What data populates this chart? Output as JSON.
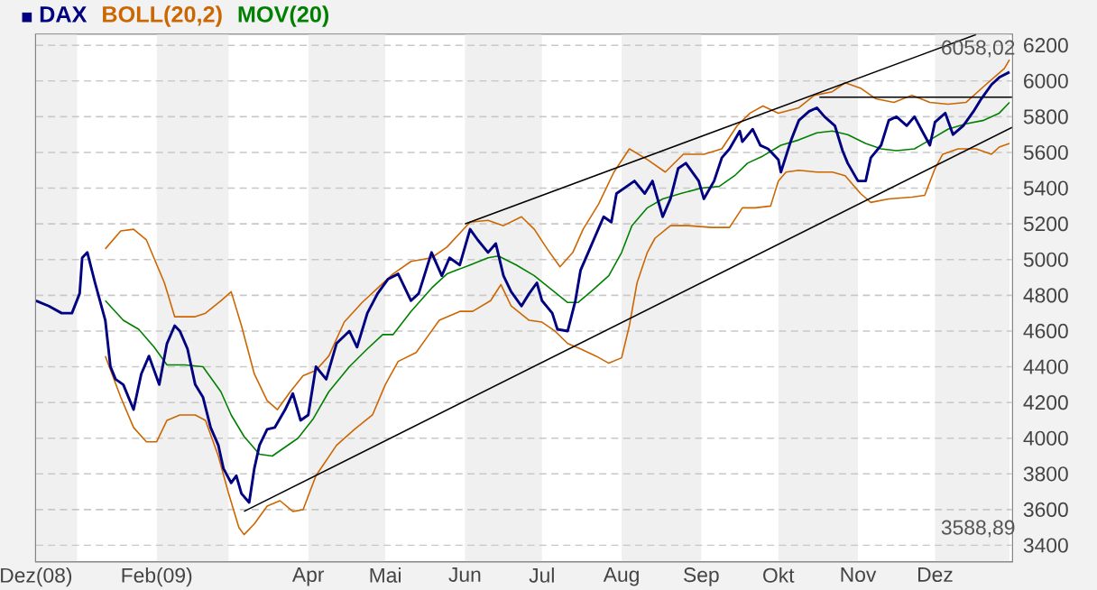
{
  "chart_data": {
    "type": "line",
    "legend": "top left",
    "grid": "y",
    "xlim": [
      "2008-12-16",
      "2009-12-31"
    ],
    "xticks": [
      {
        "value": "2008-12-16",
        "label": "Dez(08)"
      },
      {
        "value": "2009-02-01",
        "label": "Feb(09)"
      },
      {
        "value": "2009-04-01",
        "label": "Apr"
      },
      {
        "value": "2009-05-01",
        "label": "Mai"
      },
      {
        "value": "2009-06-01",
        "label": "Jun"
      },
      {
        "value": "2009-07-01",
        "label": "Jul"
      },
      {
        "value": "2009-08-01",
        "label": "Aug"
      },
      {
        "value": "2009-09-01",
        "label": "Sep"
      },
      {
        "value": "2009-10-01",
        "label": "Okt"
      },
      {
        "value": "2009-11-01",
        "label": "Nov"
      },
      {
        "value": "2009-12-01",
        "label": "Dez"
      }
    ],
    "ylim": [
      3310,
      6260
    ],
    "yticks": [
      3400,
      3600,
      3800,
      4000,
      4200,
      4400,
      4600,
      4800,
      5000,
      5200,
      5400,
      5600,
      5800,
      6000,
      6200
    ],
    "bands": [
      {
        "axis": "x",
        "from": "2008-12-16",
        "to": "2009-01-01",
        "color": "#f0f0f0"
      },
      {
        "axis": "x",
        "from": "2009-02-01",
        "to": "2009-03-01",
        "color": "#f0f0f0"
      },
      {
        "axis": "x",
        "from": "2009-04-01",
        "to": "2009-05-01",
        "color": "#f0f0f0"
      },
      {
        "axis": "x",
        "from": "2009-06-01",
        "to": "2009-07-01",
        "color": "#f0f0f0"
      },
      {
        "axis": "x",
        "from": "2009-08-01",
        "to": "2009-09-01",
        "color": "#f0f0f0"
      },
      {
        "axis": "x",
        "from": "2009-10-01",
        "to": "2009-11-01",
        "color": "#f0f0f0"
      },
      {
        "axis": "x",
        "from": "2009-12-01",
        "to": "2009-12-30",
        "color": "#f0f0f0"
      }
    ],
    "annotations": [
      "6058,02",
      "3588,89"
    ],
    "series": [
      {
        "name": "DAX",
        "color": "#000080",
        "x": [
          "2008-12-16",
          "2008-12-21",
          "2008-12-26",
          "2008-12-30",
          "2009-01-02",
          "2009-01-03",
          "2009-01-05",
          "2009-01-08",
          "2009-01-12",
          "2009-01-14",
          "2009-01-16",
          "2009-01-19",
          "2009-01-23",
          "2009-01-26",
          "2009-01-29",
          "2009-02-02",
          "2009-02-05",
          "2009-02-08",
          "2009-02-10",
          "2009-02-13",
          "2009-02-16",
          "2009-02-19",
          "2009-02-22",
          "2009-02-25",
          "2009-02-27",
          "2009-03-02",
          "2009-03-04",
          "2009-03-06",
          "2009-03-09",
          "2009-03-11",
          "2009-03-13",
          "2009-03-16",
          "2009-03-19",
          "2009-03-23",
          "2009-03-26",
          "2009-03-29",
          "2009-04-01",
          "2009-04-04",
          "2009-04-08",
          "2009-04-12",
          "2009-04-17",
          "2009-04-20",
          "2009-04-24",
          "2009-04-28",
          "2009-05-02",
          "2009-05-06",
          "2009-05-11",
          "2009-05-14",
          "2009-05-19",
          "2009-05-23",
          "2009-05-26",
          "2009-05-30",
          "2009-06-03",
          "2009-06-06",
          "2009-06-10",
          "2009-06-13",
          "2009-06-16",
          "2009-06-19",
          "2009-06-23",
          "2009-06-26",
          "2009-06-29",
          "2009-07-01",
          "2009-07-05",
          "2009-07-07",
          "2009-07-11",
          "2009-07-14",
          "2009-07-16",
          "2009-07-19",
          "2009-07-22",
          "2009-07-25",
          "2009-07-28",
          "2009-07-30",
          "2009-08-03",
          "2009-08-06",
          "2009-08-10",
          "2009-08-13",
          "2009-08-17",
          "2009-08-20",
          "2009-08-23",
          "2009-08-26",
          "2009-08-31",
          "2009-09-02",
          "2009-09-06",
          "2009-09-09",
          "2009-09-12",
          "2009-09-16",
          "2009-09-17",
          "2009-09-21",
          "2009-09-24",
          "2009-09-27",
          "2009-10-01",
          "2009-10-02",
          "2009-10-06",
          "2009-10-09",
          "2009-10-13",
          "2009-10-16",
          "2009-10-19",
          "2009-10-23",
          "2009-10-26",
          "2009-10-28",
          "2009-11-01",
          "2009-11-04",
          "2009-11-06",
          "2009-11-10",
          "2009-11-13",
          "2009-11-16",
          "2009-11-20",
          "2009-11-23",
          "2009-11-26",
          "2009-11-29",
          "2009-12-01",
          "2009-12-05",
          "2009-12-08",
          "2009-12-12",
          "2009-12-16",
          "2009-12-19",
          "2009-12-23",
          "2009-12-26",
          "2009-12-30"
        ],
        "values": [
          4770,
          4740,
          4700,
          4700,
          4810,
          5010,
          5040,
          4870,
          4660,
          4400,
          4330,
          4300,
          4160,
          4360,
          4460,
          4300,
          4530,
          4630,
          4600,
          4500,
          4300,
          4230,
          4060,
          3960,
          3830,
          3750,
          3790,
          3690,
          3640,
          3830,
          3960,
          4050,
          4060,
          4160,
          4250,
          4100,
          4130,
          4400,
          4330,
          4530,
          4600,
          4510,
          4700,
          4810,
          4890,
          4920,
          4770,
          4810,
          5040,
          4910,
          5010,
          4970,
          5170,
          5110,
          5040,
          5090,
          4910,
          4820,
          4740,
          4810,
          4870,
          4770,
          4700,
          4610,
          4600,
          4770,
          4940,
          5040,
          5140,
          5240,
          5210,
          5370,
          5410,
          5440,
          5370,
          5440,
          5240,
          5340,
          5510,
          5540,
          5440,
          5340,
          5440,
          5570,
          5620,
          5720,
          5660,
          5730,
          5640,
          5620,
          5560,
          5490,
          5670,
          5780,
          5830,
          5850,
          5800,
          5750,
          5610,
          5540,
          5440,
          5440,
          5570,
          5640,
          5780,
          5800,
          5750,
          5800,
          5720,
          5640,
          5770,
          5820,
          5700,
          5750,
          5830,
          5900,
          5980,
          6020,
          6050
        ]
      },
      {
        "name": "BOLL(20,2)",
        "color": "#cc6600",
        "x": [
          "2009-01-12",
          "2009-01-18",
          "2009-01-23",
          "2009-01-28",
          "2009-02-04",
          "2009-02-08",
          "2009-02-16",
          "2009-02-20",
          "2009-02-26",
          "2009-03-02",
          "2009-03-06",
          "2009-03-11",
          "2009-03-16",
          "2009-03-20",
          "2009-03-25",
          "2009-03-30",
          "2009-04-04",
          "2009-04-09",
          "2009-04-15",
          "2009-04-22",
          "2009-04-28",
          "2009-05-04",
          "2009-05-11",
          "2009-05-19",
          "2009-05-25",
          "2009-06-03",
          "2009-06-10",
          "2009-06-16",
          "2009-06-23",
          "2009-06-28",
          "2009-07-03",
          "2009-07-08",
          "2009-07-13",
          "2009-07-17",
          "2009-07-23",
          "2009-07-29",
          "2009-08-04",
          "2009-08-11",
          "2009-08-18",
          "2009-08-25",
          "2009-09-02",
          "2009-09-09",
          "2009-09-15",
          "2009-09-20",
          "2009-09-25",
          "2009-10-01",
          "2009-10-09",
          "2009-10-15",
          "2009-10-22",
          "2009-10-27",
          "2009-11-02",
          "2009-11-08",
          "2009-11-15",
          "2009-11-22",
          "2009-11-29",
          "2009-12-06",
          "2009-12-13",
          "2009-12-20",
          "2009-12-28",
          "2009-12-30"
        ],
        "values": [
          5060,
          5160,
          5170,
          5110,
          4870,
          4680,
          4680,
          4700,
          4770,
          4820,
          4630,
          4360,
          4210,
          4160,
          4260,
          4350,
          4380,
          4460,
          4650,
          4760,
          4840,
          4920,
          4990,
          5010,
          5070,
          5210,
          5220,
          5190,
          5240,
          5170,
          5060,
          4960,
          5040,
          5170,
          5310,
          5490,
          5620,
          5560,
          5490,
          5590,
          5590,
          5620,
          5750,
          5820,
          5860,
          5820,
          5850,
          5920,
          5940,
          5990,
          5960,
          5900,
          5880,
          5920,
          5880,
          5870,
          5880,
          5970,
          6070,
          6120
        ]
      },
      {
        "color": "#cc6600",
        "x": [
          "2009-01-12",
          "2009-01-18",
          "2009-01-23",
          "2009-01-28",
          "2009-02-01",
          "2009-02-05",
          "2009-02-10",
          "2009-02-16",
          "2009-02-20",
          "2009-02-25",
          "2009-03-01",
          "2009-03-05",
          "2009-03-07",
          "2009-03-11",
          "2009-03-16",
          "2009-03-21",
          "2009-03-26",
          "2009-03-30",
          "2009-04-04",
          "2009-04-12",
          "2009-04-19",
          "2009-04-26",
          "2009-05-01",
          "2009-05-06",
          "2009-05-13",
          "2009-05-17",
          "2009-05-22",
          "2009-05-30",
          "2009-06-04",
          "2009-06-11",
          "2009-06-15",
          "2009-06-19",
          "2009-06-26",
          "2009-07-01",
          "2009-07-06",
          "2009-07-11",
          "2009-07-16",
          "2009-07-22",
          "2009-07-27",
          "2009-08-01",
          "2009-08-04",
          "2009-08-07",
          "2009-08-11",
          "2009-08-14",
          "2009-08-20",
          "2009-08-27",
          "2009-09-05",
          "2009-09-12",
          "2009-09-17",
          "2009-09-22",
          "2009-09-28",
          "2009-10-01",
          "2009-10-04",
          "2009-10-09",
          "2009-10-16",
          "2009-10-22",
          "2009-10-27",
          "2009-11-02",
          "2009-11-06",
          "2009-11-13",
          "2009-11-22",
          "2009-11-27",
          "2009-12-01",
          "2009-12-04",
          "2009-12-10",
          "2009-12-17",
          "2009-12-23",
          "2009-12-26",
          "2009-12-30"
        ],
        "values": [
          4460,
          4230,
          4060,
          3980,
          3980,
          4100,
          4130,
          4130,
          4100,
          3900,
          3690,
          3500,
          3460,
          3520,
          3620,
          3650,
          3590,
          3600,
          3790,
          3960,
          4050,
          4130,
          4300,
          4430,
          4480,
          4560,
          4660,
          4710,
          4710,
          4770,
          4860,
          4740,
          4660,
          4650,
          4600,
          4530,
          4500,
          4460,
          4420,
          4450,
          4630,
          4870,
          5040,
          5120,
          5190,
          5190,
          5180,
          5180,
          5290,
          5290,
          5300,
          5440,
          5490,
          5500,
          5490,
          5490,
          5470,
          5370,
          5320,
          5340,
          5350,
          5360,
          5510,
          5590,
          5620,
          5620,
          5590,
          5630,
          5650
        ]
      },
      {
        "name": "MOV(20)",
        "color": "#008000",
        "x": [
          "2009-01-12",
          "2009-01-19",
          "2009-01-25",
          "2009-01-31",
          "2009-02-05",
          "2009-02-12",
          "2009-02-19",
          "2009-02-26",
          "2009-03-02",
          "2009-03-07",
          "2009-03-13",
          "2009-03-18",
          "2009-03-23",
          "2009-03-28",
          "2009-04-03",
          "2009-04-09",
          "2009-04-17",
          "2009-04-24",
          "2009-04-30",
          "2009-05-04",
          "2009-05-11",
          "2009-05-19",
          "2009-05-25",
          "2009-06-03",
          "2009-06-10",
          "2009-06-14",
          "2009-06-21",
          "2009-06-28",
          "2009-07-04",
          "2009-07-11",
          "2009-07-15",
          "2009-07-20",
          "2009-07-27",
          "2009-08-01",
          "2009-08-05",
          "2009-08-11",
          "2009-08-17",
          "2009-08-24",
          "2009-09-01",
          "2009-09-08",
          "2009-09-14",
          "2009-09-19",
          "2009-09-25",
          "2009-10-02",
          "2009-10-09",
          "2009-10-16",
          "2009-10-22",
          "2009-10-28",
          "2009-11-04",
          "2009-11-10",
          "2009-11-16",
          "2009-11-23",
          "2009-11-29",
          "2009-12-06",
          "2009-12-13",
          "2009-12-20",
          "2009-12-26",
          "2009-12-30"
        ],
        "values": [
          4770,
          4660,
          4610,
          4510,
          4410,
          4410,
          4400,
          4260,
          4130,
          4010,
          3910,
          3900,
          3950,
          4000,
          4110,
          4260,
          4400,
          4500,
          4580,
          4580,
          4710,
          4840,
          4920,
          4970,
          5010,
          5020,
          4970,
          4910,
          4840,
          4760,
          4760,
          4820,
          4910,
          5040,
          5190,
          5290,
          5340,
          5370,
          5400,
          5410,
          5470,
          5540,
          5580,
          5640,
          5670,
          5710,
          5720,
          5700,
          5650,
          5620,
          5610,
          5620,
          5670,
          5730,
          5760,
          5780,
          5820,
          5880
        ]
      },
      {
        "color": "#000000",
        "x": [
          "2009-03-07",
          "2009-12-31"
        ],
        "values": [
          3590,
          5740
        ]
      },
      {
        "color": "#000000",
        "x": [
          "2009-06-01",
          "2009-12-17"
        ],
        "values": [
          5200,
          6260
        ]
      },
      {
        "color": "#000000",
        "x": [
          "2009-10-17",
          "2009-12-31"
        ],
        "values": [
          5910,
          5910
        ]
      }
    ]
  }
}
